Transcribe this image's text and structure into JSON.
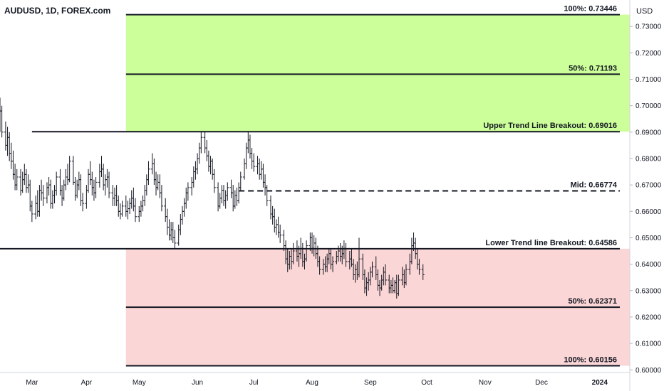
{
  "header": {
    "symbol": "AUDUSD, 1D, FOREX.com",
    "currency": "USD"
  },
  "chart_data": {
    "type": "candlestick",
    "ylim": [
      0.599,
      0.74
    ],
    "y_ticks": [
      "0.73000",
      "0.72000",
      "0.71000",
      "0.70000",
      "0.69000",
      "0.68000",
      "0.67000",
      "0.66000",
      "0.65000",
      "0.64000",
      "0.63000",
      "0.62000",
      "0.61000",
      "0.60000"
    ],
    "y_tick_values": [
      0.73,
      0.72,
      0.71,
      0.7,
      0.69,
      0.68,
      0.67,
      0.66,
      0.65,
      0.64,
      0.63,
      0.62,
      0.61,
      0.6
    ],
    "x_months": [
      "Mar",
      "Apr",
      "May",
      "Jun",
      "Jul",
      "Aug",
      "Sep",
      "Oct",
      "Nov",
      "Dec",
      "2024"
    ],
    "x_month_days": [
      17,
      46,
      74,
      105,
      135,
      166,
      197,
      227,
      258,
      288,
      319
    ],
    "x_range_days": [
      0,
      335
    ],
    "zones": [
      {
        "name": "target-zone",
        "y0": 0.69016,
        "y1": 0.73446,
        "x_start_day": 67,
        "color": "#ccff99"
      },
      {
        "name": "stop-zone",
        "y0": 0.60156,
        "y1": 0.64586,
        "x_start_day": 67,
        "color": "#fbd6d6"
      }
    ],
    "levels": [
      {
        "name": "level-100-upper",
        "label": "100%: 0.73446",
        "value": 0.73446,
        "x_start_day": 67,
        "style": "solid"
      },
      {
        "name": "level-50-upper",
        "label": "50%: 0.71193",
        "value": 0.71193,
        "x_start_day": 67,
        "style": "solid"
      },
      {
        "name": "level-upper-breakout",
        "label": "Upper Trend Line Breakout: 0.69016",
        "value": 0.69016,
        "x_start_day": 17,
        "style": "solid"
      },
      {
        "name": "level-mid",
        "label": "Mid: 0.66774",
        "value": 0.66774,
        "x_start_day": 127,
        "style": "dashed"
      },
      {
        "name": "level-lower-breakout",
        "label": "Lower Trend line Breakout: 0.64586",
        "value": 0.64586,
        "x_start_day": 0,
        "style": "solid"
      },
      {
        "name": "level-50-lower",
        "label": "50%: 0.62371",
        "value": 0.62371,
        "x_start_day": 67,
        "style": "solid"
      },
      {
        "name": "level-100-lower",
        "label": "100%: 0.60156",
        "value": 0.60156,
        "x_start_day": 67,
        "style": "solid"
      }
    ],
    "bars": [
      [
        0,
        0.696,
        0.703,
        0.69,
        0.698
      ],
      [
        1,
        0.698,
        0.7,
        0.688,
        0.69
      ],
      [
        3,
        0.69,
        0.694,
        0.683,
        0.685
      ],
      [
        4,
        0.685,
        0.692,
        0.681,
        0.688
      ],
      [
        5,
        0.688,
        0.69,
        0.679,
        0.682
      ],
      [
        6,
        0.682,
        0.686,
        0.676,
        0.679
      ],
      [
        7,
        0.679,
        0.683,
        0.672,
        0.674
      ],
      [
        8,
        0.674,
        0.678,
        0.668,
        0.67
      ],
      [
        9,
        0.67,
        0.676,
        0.668,
        0.673
      ],
      [
        11,
        0.673,
        0.676,
        0.666,
        0.668
      ],
      [
        12,
        0.668,
        0.675,
        0.667,
        0.672
      ],
      [
        13,
        0.672,
        0.678,
        0.67,
        0.674
      ],
      [
        14,
        0.674,
        0.676,
        0.667,
        0.669
      ],
      [
        15,
        0.669,
        0.674,
        0.667,
        0.67
      ],
      [
        16,
        0.67,
        0.672,
        0.66,
        0.662
      ],
      [
        17,
        0.662,
        0.664,
        0.656,
        0.659
      ],
      [
        19,
        0.659,
        0.666,
        0.657,
        0.663
      ],
      [
        20,
        0.663,
        0.668,
        0.658,
        0.66
      ],
      [
        21,
        0.66,
        0.67,
        0.658,
        0.668
      ],
      [
        22,
        0.668,
        0.672,
        0.664,
        0.667
      ],
      [
        23,
        0.667,
        0.67,
        0.662,
        0.665
      ],
      [
        25,
        0.665,
        0.671,
        0.663,
        0.669
      ],
      [
        26,
        0.669,
        0.673,
        0.666,
        0.67
      ],
      [
        27,
        0.67,
        0.672,
        0.661,
        0.663
      ],
      [
        28,
        0.663,
        0.668,
        0.661,
        0.666
      ],
      [
        29,
        0.666,
        0.67,
        0.663,
        0.668
      ],
      [
        30,
        0.668,
        0.675,
        0.666,
        0.673
      ],
      [
        32,
        0.673,
        0.676,
        0.666,
        0.668
      ],
      [
        33,
        0.668,
        0.67,
        0.662,
        0.665
      ],
      [
        34,
        0.665,
        0.672,
        0.664,
        0.67
      ],
      [
        35,
        0.67,
        0.676,
        0.668,
        0.673
      ],
      [
        36,
        0.673,
        0.678,
        0.67,
        0.672
      ],
      [
        37,
        0.672,
        0.681,
        0.671,
        0.679
      ],
      [
        39,
        0.679,
        0.681,
        0.67,
        0.671
      ],
      [
        40,
        0.671,
        0.673,
        0.664,
        0.666
      ],
      [
        41,
        0.666,
        0.672,
        0.665,
        0.67
      ],
      [
        42,
        0.67,
        0.675,
        0.668,
        0.672
      ],
      [
        43,
        0.672,
        0.674,
        0.662,
        0.664
      ],
      [
        44,
        0.664,
        0.667,
        0.66,
        0.663
      ],
      [
        46,
        0.663,
        0.67,
        0.661,
        0.668
      ],
      [
        47,
        0.668,
        0.676,
        0.667,
        0.674
      ],
      [
        48,
        0.674,
        0.679,
        0.67,
        0.672
      ],
      [
        49,
        0.672,
        0.675,
        0.666,
        0.669
      ],
      [
        50,
        0.669,
        0.672,
        0.664,
        0.667
      ],
      [
        51,
        0.667,
        0.673,
        0.665,
        0.671
      ],
      [
        53,
        0.671,
        0.678,
        0.669,
        0.675
      ],
      [
        54,
        0.675,
        0.681,
        0.673,
        0.676
      ],
      [
        55,
        0.676,
        0.678,
        0.668,
        0.67
      ],
      [
        56,
        0.67,
        0.674,
        0.666,
        0.672
      ],
      [
        57,
        0.672,
        0.676,
        0.669,
        0.673
      ],
      [
        58,
        0.673,
        0.675,
        0.665,
        0.667
      ],
      [
        60,
        0.667,
        0.67,
        0.662,
        0.665
      ],
      [
        61,
        0.665,
        0.669,
        0.662,
        0.666
      ],
      [
        62,
        0.666,
        0.67,
        0.662,
        0.664
      ],
      [
        63,
        0.664,
        0.666,
        0.658,
        0.66
      ],
      [
        64,
        0.66,
        0.663,
        0.657,
        0.659
      ],
      [
        65,
        0.659,
        0.664,
        0.658,
        0.662
      ],
      [
        67,
        0.662,
        0.666,
        0.658,
        0.66
      ],
      [
        68,
        0.66,
        0.664,
        0.657,
        0.661
      ],
      [
        69,
        0.661,
        0.665,
        0.659,
        0.663
      ],
      [
        70,
        0.663,
        0.668,
        0.661,
        0.665
      ],
      [
        71,
        0.665,
        0.669,
        0.66,
        0.662
      ],
      [
        72,
        0.662,
        0.665,
        0.656,
        0.658
      ],
      [
        74,
        0.658,
        0.662,
        0.656,
        0.66
      ],
      [
        75,
        0.66,
        0.664,
        0.658,
        0.662
      ],
      [
        76,
        0.662,
        0.666,
        0.66,
        0.664
      ],
      [
        77,
        0.664,
        0.67,
        0.662,
        0.668
      ],
      [
        78,
        0.668,
        0.674,
        0.666,
        0.672
      ],
      [
        79,
        0.672,
        0.679,
        0.67,
        0.676
      ],
      [
        81,
        0.676,
        0.682,
        0.674,
        0.678
      ],
      [
        82,
        0.678,
        0.68,
        0.67,
        0.672
      ],
      [
        83,
        0.672,
        0.675,
        0.666,
        0.669
      ],
      [
        84,
        0.669,
        0.674,
        0.668,
        0.671
      ],
      [
        85,
        0.671,
        0.674,
        0.665,
        0.667
      ],
      [
        86,
        0.667,
        0.67,
        0.66,
        0.662
      ],
      [
        88,
        0.662,
        0.665,
        0.656,
        0.658
      ],
      [
        89,
        0.658,
        0.661,
        0.651,
        0.654
      ],
      [
        90,
        0.654,
        0.657,
        0.649,
        0.651
      ],
      [
        91,
        0.651,
        0.656,
        0.649,
        0.653
      ],
      [
        92,
        0.653,
        0.656,
        0.648,
        0.65
      ],
      [
        93,
        0.65,
        0.653,
        0.646,
        0.648
      ],
      [
        95,
        0.648,
        0.655,
        0.647,
        0.653
      ],
      [
        96,
        0.653,
        0.659,
        0.651,
        0.657
      ],
      [
        97,
        0.657,
        0.662,
        0.655,
        0.66
      ],
      [
        98,
        0.66,
        0.665,
        0.658,
        0.663
      ],
      [
        99,
        0.663,
        0.669,
        0.661,
        0.667
      ],
      [
        100,
        0.667,
        0.671,
        0.664,
        0.669
      ],
      [
        102,
        0.669,
        0.673,
        0.666,
        0.671
      ],
      [
        103,
        0.671,
        0.677,
        0.669,
        0.675
      ],
      [
        104,
        0.675,
        0.679,
        0.672,
        0.676
      ],
      [
        105,
        0.676,
        0.682,
        0.674,
        0.68
      ],
      [
        106,
        0.68,
        0.686,
        0.678,
        0.684
      ],
      [
        107,
        0.684,
        0.69,
        0.682,
        0.688
      ],
      [
        109,
        0.688,
        0.69,
        0.682,
        0.684
      ],
      [
        110,
        0.684,
        0.687,
        0.679,
        0.681
      ],
      [
        111,
        0.681,
        0.683,
        0.675,
        0.677
      ],
      [
        112,
        0.677,
        0.681,
        0.674,
        0.679
      ],
      [
        113,
        0.679,
        0.68,
        0.672,
        0.674
      ],
      [
        114,
        0.674,
        0.676,
        0.667,
        0.669
      ],
      [
        116,
        0.669,
        0.671,
        0.66,
        0.662
      ],
      [
        117,
        0.662,
        0.667,
        0.661,
        0.665
      ],
      [
        118,
        0.665,
        0.67,
        0.663,
        0.668
      ],
      [
        119,
        0.668,
        0.67,
        0.662,
        0.664
      ],
      [
        120,
        0.664,
        0.668,
        0.661,
        0.666
      ],
      [
        121,
        0.666,
        0.671,
        0.664,
        0.669
      ],
      [
        123,
        0.669,
        0.672,
        0.665,
        0.667
      ],
      [
        124,
        0.667,
        0.67,
        0.66,
        0.662
      ],
      [
        125,
        0.662,
        0.668,
        0.661,
        0.666
      ],
      [
        126,
        0.666,
        0.669,
        0.662,
        0.664
      ],
      [
        127,
        0.664,
        0.671,
        0.663,
        0.669
      ],
      [
        128,
        0.669,
        0.675,
        0.668,
        0.673
      ],
      [
        130,
        0.673,
        0.68,
        0.672,
        0.678
      ],
      [
        131,
        0.678,
        0.686,
        0.676,
        0.684
      ],
      [
        132,
        0.684,
        0.69,
        0.682,
        0.687
      ],
      [
        133,
        0.687,
        0.689,
        0.68,
        0.682
      ],
      [
        134,
        0.682,
        0.684,
        0.676,
        0.679
      ],
      [
        135,
        0.679,
        0.682,
        0.675,
        0.677
      ],
      [
        137,
        0.677,
        0.681,
        0.674,
        0.678
      ],
      [
        138,
        0.678,
        0.68,
        0.672,
        0.674
      ],
      [
        139,
        0.674,
        0.679,
        0.672,
        0.676
      ],
      [
        140,
        0.676,
        0.678,
        0.669,
        0.671
      ],
      [
        141,
        0.671,
        0.674,
        0.666,
        0.669
      ],
      [
        142,
        0.669,
        0.67,
        0.662,
        0.664
      ],
      [
        144,
        0.664,
        0.666,
        0.657,
        0.659
      ],
      [
        145,
        0.659,
        0.662,
        0.655,
        0.658
      ],
      [
        146,
        0.658,
        0.661,
        0.652,
        0.654
      ],
      [
        147,
        0.654,
        0.657,
        0.651,
        0.655
      ],
      [
        148,
        0.655,
        0.658,
        0.65,
        0.652
      ],
      [
        149,
        0.652,
        0.655,
        0.648,
        0.651
      ],
      [
        151,
        0.651,
        0.653,
        0.645,
        0.647
      ],
      [
        152,
        0.647,
        0.649,
        0.64,
        0.642
      ],
      [
        153,
        0.642,
        0.646,
        0.637,
        0.64
      ],
      [
        154,
        0.64,
        0.645,
        0.638,
        0.643
      ],
      [
        155,
        0.643,
        0.646,
        0.638,
        0.641
      ],
      [
        156,
        0.641,
        0.648,
        0.64,
        0.645
      ],
      [
        158,
        0.645,
        0.649,
        0.641,
        0.643
      ],
      [
        159,
        0.643,
        0.647,
        0.639,
        0.644
      ],
      [
        160,
        0.644,
        0.65,
        0.642,
        0.646
      ],
      [
        161,
        0.646,
        0.648,
        0.639,
        0.641
      ],
      [
        162,
        0.641,
        0.644,
        0.638,
        0.642
      ],
      [
        163,
        0.642,
        0.649,
        0.641,
        0.647
      ],
      [
        165,
        0.647,
        0.652,
        0.645,
        0.65
      ],
      [
        166,
        0.65,
        0.652,
        0.644,
        0.646
      ],
      [
        167,
        0.646,
        0.651,
        0.643,
        0.648
      ],
      [
        168,
        0.648,
        0.65,
        0.642,
        0.644
      ],
      [
        169,
        0.644,
        0.647,
        0.639,
        0.641
      ],
      [
        170,
        0.641,
        0.643,
        0.636,
        0.638
      ],
      [
        172,
        0.638,
        0.642,
        0.636,
        0.64
      ],
      [
        173,
        0.64,
        0.643,
        0.637,
        0.639
      ],
      [
        174,
        0.639,
        0.644,
        0.637,
        0.642
      ],
      [
        175,
        0.642,
        0.646,
        0.64,
        0.644
      ],
      [
        176,
        0.644,
        0.646,
        0.638,
        0.64
      ],
      [
        177,
        0.64,
        0.643,
        0.637,
        0.641
      ],
      [
        179,
        0.641,
        0.645,
        0.64,
        0.643
      ],
      [
        180,
        0.643,
        0.647,
        0.641,
        0.645
      ],
      [
        181,
        0.645,
        0.648,
        0.641,
        0.643
      ],
      [
        182,
        0.643,
        0.647,
        0.64,
        0.644
      ],
      [
        183,
        0.644,
        0.649,
        0.642,
        0.646
      ],
      [
        184,
        0.646,
        0.648,
        0.639,
        0.641
      ],
      [
        186,
        0.641,
        0.645,
        0.638,
        0.642
      ],
      [
        187,
        0.642,
        0.646,
        0.639,
        0.64
      ],
      [
        188,
        0.64,
        0.642,
        0.634,
        0.636
      ],
      [
        189,
        0.636,
        0.64,
        0.633,
        0.638
      ],
      [
        190,
        0.638,
        0.641,
        0.634,
        0.636
      ],
      [
        191,
        0.636,
        0.65,
        0.635,
        0.642
      ],
      [
        193,
        0.642,
        0.644,
        0.634,
        0.636
      ],
      [
        194,
        0.636,
        0.638,
        0.629,
        0.631
      ],
      [
        195,
        0.631,
        0.635,
        0.628,
        0.633
      ],
      [
        196,
        0.633,
        0.637,
        0.63,
        0.634
      ],
      [
        197,
        0.634,
        0.639,
        0.632,
        0.637
      ],
      [
        198,
        0.637,
        0.641,
        0.635,
        0.639
      ],
      [
        200,
        0.639,
        0.643,
        0.634,
        0.636
      ],
      [
        201,
        0.636,
        0.638,
        0.63,
        0.632
      ],
      [
        202,
        0.632,
        0.634,
        0.628,
        0.631
      ],
      [
        203,
        0.631,
        0.636,
        0.63,
        0.634
      ],
      [
        204,
        0.634,
        0.639,
        0.632,
        0.637
      ],
      [
        205,
        0.637,
        0.64,
        0.632,
        0.634
      ],
      [
        207,
        0.634,
        0.636,
        0.629,
        0.631
      ],
      [
        208,
        0.631,
        0.634,
        0.629,
        0.632
      ],
      [
        209,
        0.632,
        0.635,
        0.629,
        0.63
      ],
      [
        210,
        0.63,
        0.634,
        0.629,
        0.633
      ],
      [
        211,
        0.633,
        0.636,
        0.627,
        0.629
      ],
      [
        212,
        0.629,
        0.636,
        0.628,
        0.634
      ],
      [
        214,
        0.634,
        0.639,
        0.632,
        0.636
      ],
      [
        215,
        0.636,
        0.638,
        0.631,
        0.633
      ],
      [
        216,
        0.633,
        0.64,
        0.632,
        0.638
      ],
      [
        218,
        0.638,
        0.644,
        0.636,
        0.641
      ],
      [
        219,
        0.641,
        0.65,
        0.64,
        0.647
      ],
      [
        220,
        0.647,
        0.652,
        0.645,
        0.648
      ],
      [
        221,
        0.648,
        0.65,
        0.642,
        0.644
      ],
      [
        222,
        0.644,
        0.646,
        0.638,
        0.64
      ],
      [
        223,
        0.64,
        0.642,
        0.636,
        0.638
      ],
      [
        225,
        0.638,
        0.64,
        0.634,
        0.636
      ]
    ]
  }
}
